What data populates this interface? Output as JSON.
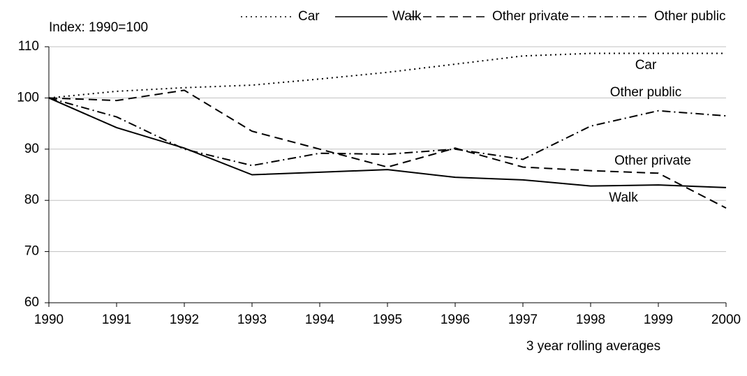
{
  "chart_data": {
    "type": "line",
    "y_label": "Index: 1990=100",
    "note": "3 year rolling averages",
    "x": [
      1990,
      1991,
      1992,
      1993,
      1994,
      1995,
      1996,
      1997,
      1998,
      1999,
      2000
    ],
    "xlim": [
      1990,
      2000
    ],
    "xticks": [
      1990,
      1991,
      1992,
      1993,
      1994,
      1995,
      1996,
      1997,
      1998,
      1999,
      2000
    ],
    "ylim": [
      60,
      110
    ],
    "yticks": [
      60,
      70,
      80,
      90,
      100,
      110
    ],
    "grid": true,
    "legend": "top",
    "series": [
      {
        "name": "Car",
        "color": "#000000",
        "style": "dotted",
        "values": [
          100,
          101.3,
          102,
          102.5,
          103.7,
          105,
          106.6,
          108.2,
          108.7,
          108.7,
          108.7
        ]
      },
      {
        "name": "Walk",
        "color": "#000000",
        "style": "solid",
        "values": [
          100,
          94.2,
          90.2,
          85,
          85.5,
          86,
          84.5,
          84,
          82.8,
          83,
          82.5
        ]
      },
      {
        "name": "Other private",
        "color": "#000000",
        "style": "dashed",
        "values": [
          100,
          99.5,
          101.5,
          93.5,
          90,
          86.5,
          90.2,
          86.5,
          85.8,
          85.3,
          78.5
        ]
      },
      {
        "name": "Other public",
        "color": "#000000",
        "style": "dashdot",
        "values": [
          100,
          96.3,
          90,
          86.8,
          89.2,
          89,
          90,
          88,
          94.5,
          97.5,
          96.5
        ]
      }
    ],
    "annotations": [
      "Car",
      "Other public",
      "Other private",
      "Walk"
    ]
  }
}
